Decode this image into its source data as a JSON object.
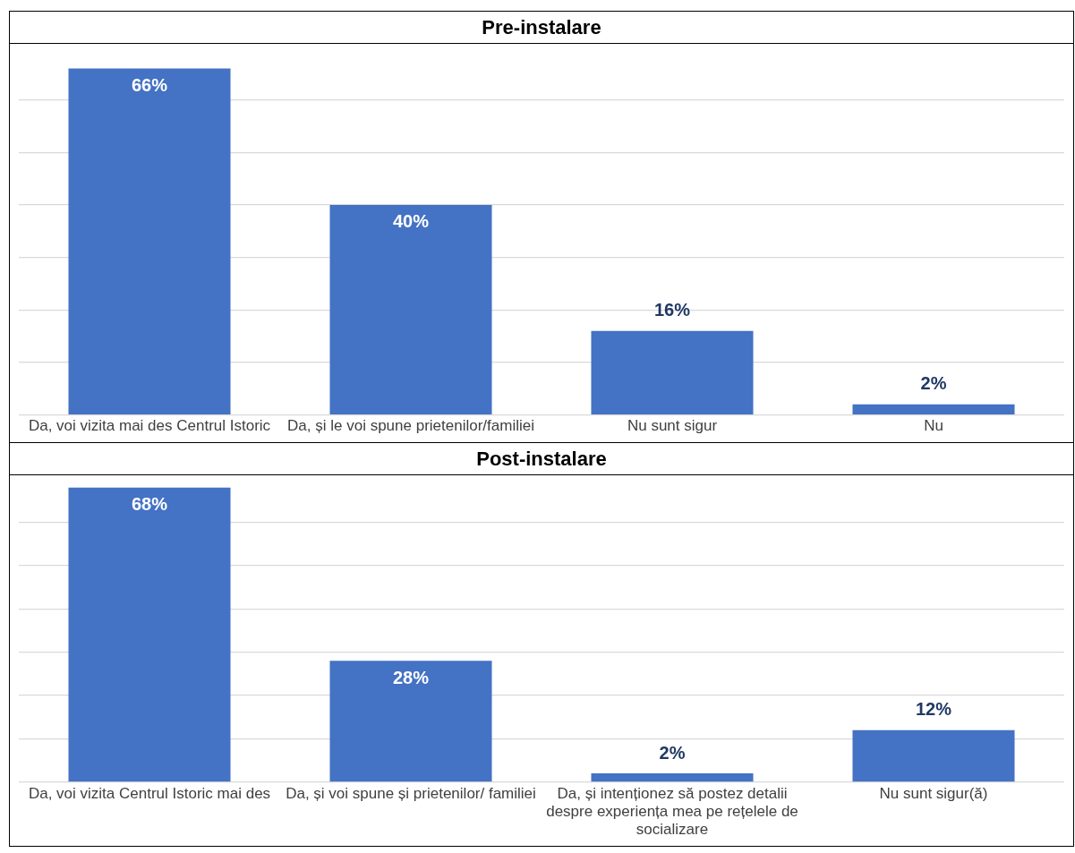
{
  "chart_data": [
    {
      "type": "bar",
      "title": "Pre-instalare",
      "categories": [
        "Da, voi vizita mai des Centrul Istoric",
        "Da, și le voi spune prietenilor/familiei",
        "Nu sunt sigur",
        "Nu"
      ],
      "values": [
        66,
        40,
        16,
        2
      ],
      "color": "#4472c4",
      "value_labels": [
        "66%",
        "40%",
        "16%",
        "2%"
      ],
      "yticks": [
        {
          "value": 0,
          "label": null
        },
        {
          "value": 10,
          "label": null
        },
        {
          "value": 20,
          "label": null
        },
        {
          "value": 30,
          "label": null
        },
        {
          "value": 40,
          "label": null
        },
        {
          "value": 50,
          "label": null
        },
        {
          "value": 60,
          "label": null
        }
      ],
      "grid": "y",
      "tick_labels": "x",
      "legend": false
    },
    {
      "type": "bar",
      "title": "Post-instalare",
      "categories": [
        "Da, voi vizita Centrul Istoric mai des",
        "Da, și voi spune și prietenilor/ familiei",
        "Da, și intenționez să postez detalii despre experiența mea pe rețelele de socializare",
        "Nu sunt sigur(ă)"
      ],
      "values": [
        68,
        28,
        2,
        12
      ],
      "color": "#4472c4",
      "value_labels": [
        "68%",
        "28%",
        "2%",
        "12%"
      ],
      "yticks": [
        {
          "value": 0,
          "label": null
        },
        {
          "value": 10,
          "label": null
        },
        {
          "value": 20,
          "label": null
        },
        {
          "value": 30,
          "label": null
        },
        {
          "value": 40,
          "label": null
        },
        {
          "value": 50,
          "label": null
        },
        {
          "value": 60,
          "label": null
        }
      ],
      "grid": "y",
      "tick_labels": "x",
      "legend": false
    }
  ]
}
